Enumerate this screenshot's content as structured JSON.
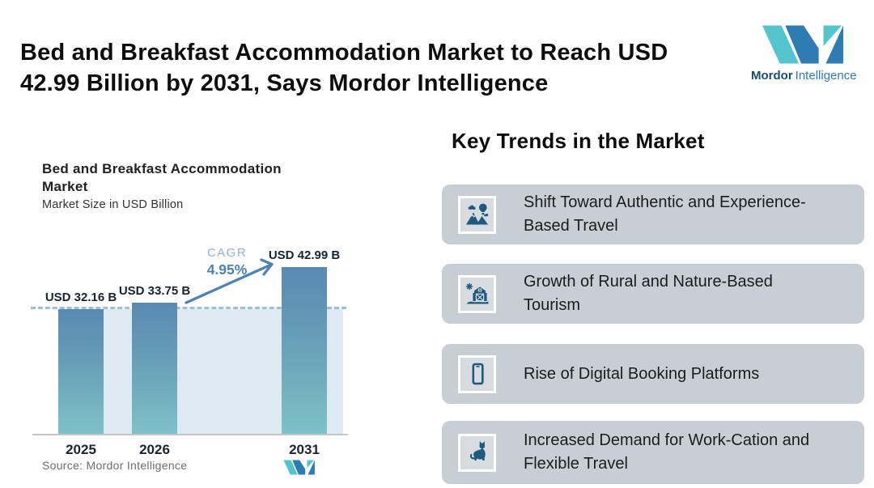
{
  "header": {
    "title_lines": [
      "Bed and Breakfast Accommodation Market to Reach USD",
      "42.99 Billion by 2031, Says Mordor Intelligence"
    ]
  },
  "brand": {
    "name_primary": "Mordor",
    "name_secondary": "Intelligence",
    "teal": "#54c5ce",
    "blue": "#2e7cb2"
  },
  "chart_data": {
    "type": "bar",
    "title": "Bed and Breakfast Accommodation Market",
    "subtitle": "Market Size in USD Billion",
    "categories": [
      "2025",
      "2026",
      "2031"
    ],
    "values": [
      32.16,
      33.75,
      42.99
    ],
    "data_labels": [
      "USD 32.16 B",
      "USD 33.75 B",
      "USD 42.99 B"
    ],
    "unit": "USD Billion",
    "cagr_label": "CAGR",
    "cagr_value": "4.95%",
    "annotation": "Growth arrow from 2026 bar to 2031 bar",
    "baseline_reference": 32.16,
    "ylim": [
      0,
      45
    ],
    "grid": false,
    "bar_gradient": [
      "#5a89b1",
      "#7ec2c7"
    ],
    "source": "Source: Mordor Intelligence"
  },
  "trends": {
    "heading": "Key Trends in the Market",
    "card_bg": "#c9ced5",
    "icon_color": "#1d5a7d",
    "items": [
      {
        "icon": "mountains-balloon-icon",
        "lines": [
          "Shift Toward Authentic and Experience-",
          "Based Travel"
        ]
      },
      {
        "icon": "barn-sun-icon",
        "lines": [
          "Growth of Rural and Nature-Based",
          "Tourism"
        ]
      },
      {
        "icon": "smartphone-icon",
        "lines": [
          "Rise of Digital Booking Platforms"
        ]
      },
      {
        "icon": "cat-icon",
        "lines": [
          "Increased Demand for Work-Cation and",
          "Flexible Travel"
        ]
      }
    ]
  }
}
